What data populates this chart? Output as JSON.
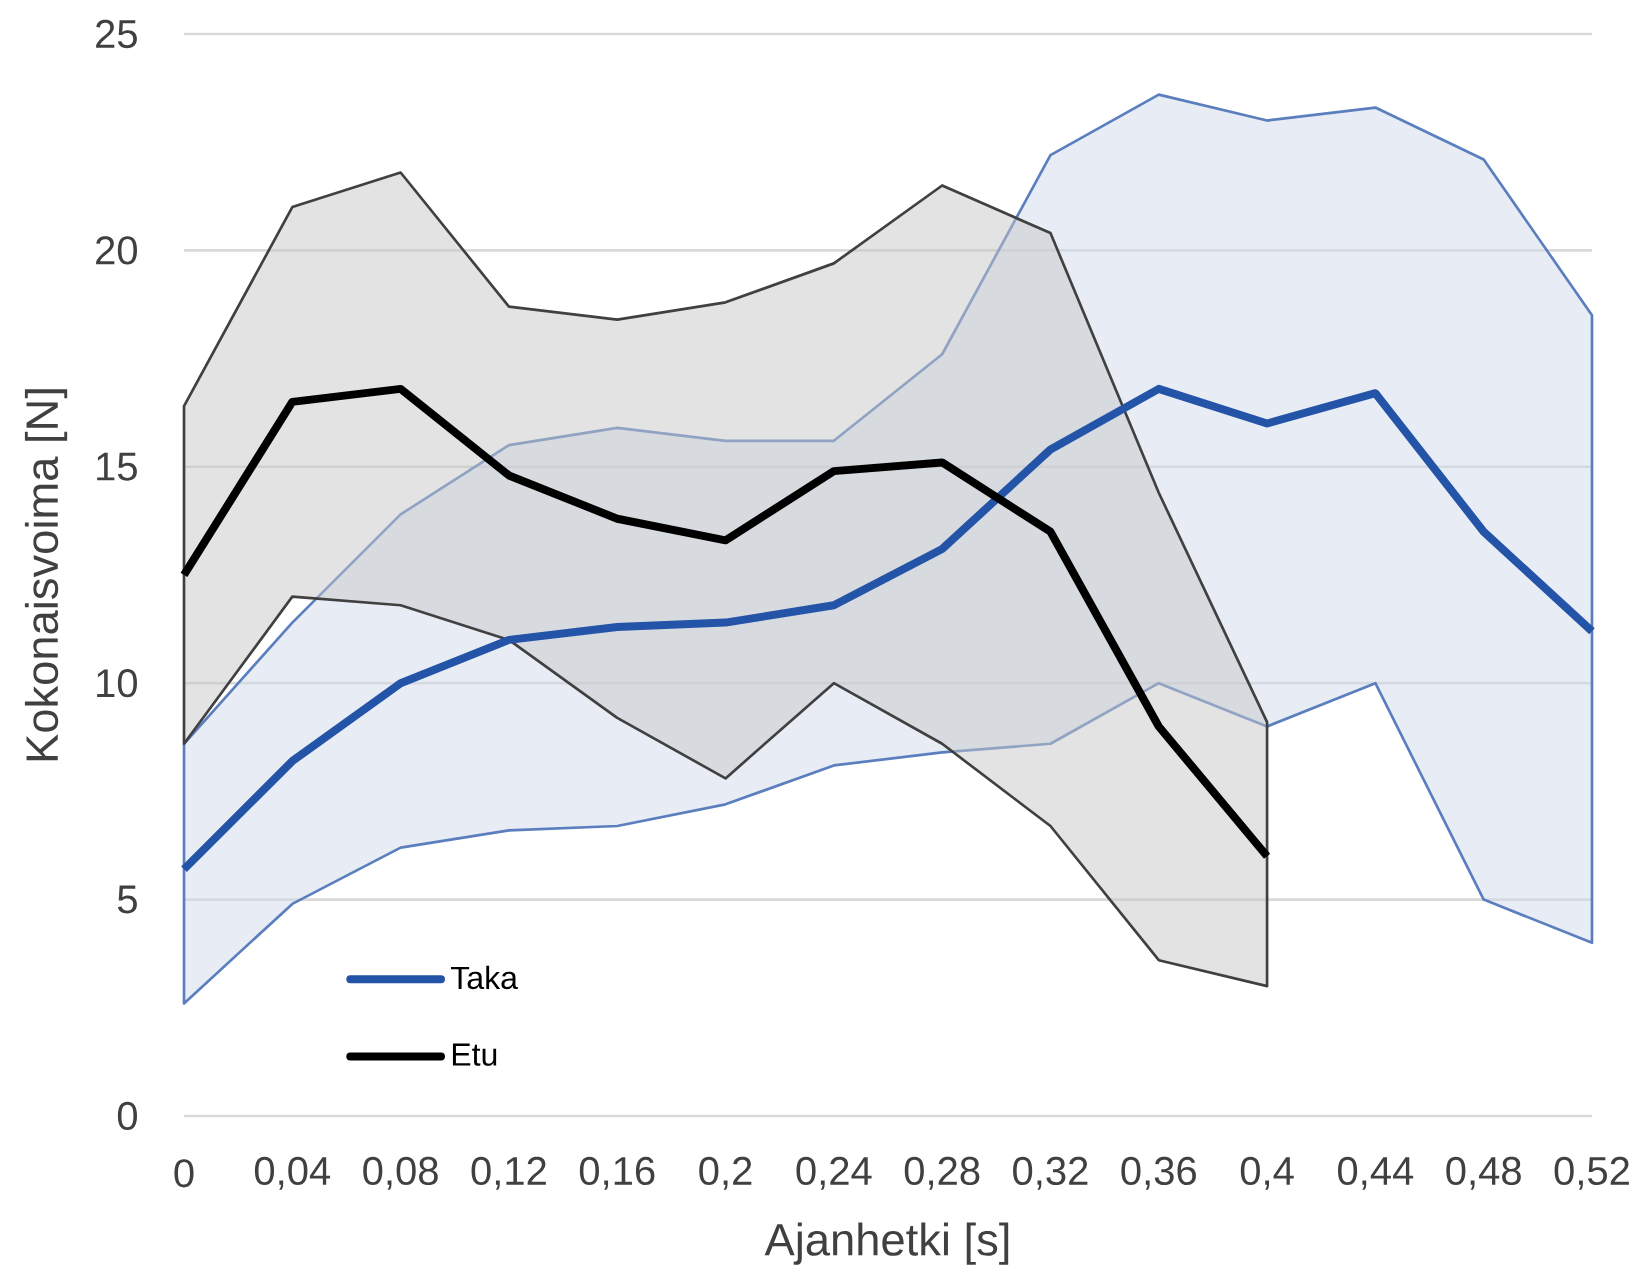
{
  "chart_data": {
    "type": "line",
    "xlabel": "Ajanhetki [s]",
    "ylabel": "Kokonaisvoima [N]",
    "categories": [
      "0",
      "0,04",
      "0,08",
      "0,12",
      "0,16",
      "0,2",
      "0,24",
      "0,28",
      "0,32",
      "0,36",
      "0,4",
      "0,44",
      "0,48",
      "0,52"
    ],
    "series": [
      {
        "name": "Taka",
        "color": "#2454a8",
        "values": [
          5.7,
          8.2,
          10.0,
          11.0,
          11.3,
          11.4,
          11.8,
          13.1,
          15.4,
          16.8,
          16.0,
          16.7,
          13.5,
          11.2
        ],
        "lower": [
          2.6,
          4.9,
          6.2,
          6.6,
          6.7,
          7.2,
          8.1,
          8.4,
          8.6,
          10.0,
          9.0,
          10.0,
          5.0,
          4.0
        ],
        "upper": [
          8.6,
          11.4,
          13.9,
          15.5,
          15.9,
          15.6,
          15.6,
          17.6,
          22.2,
          23.6,
          23.0,
          23.3,
          22.1,
          18.5
        ]
      },
      {
        "name": "Etu",
        "color": "#000000",
        "values": [
          12.5,
          16.5,
          16.8,
          14.8,
          13.8,
          13.3,
          14.9,
          15.1,
          13.5,
          9.0,
          6.0,
          null,
          null,
          null
        ],
        "lower": [
          8.6,
          12.0,
          11.8,
          11.0,
          9.2,
          7.8,
          10.0,
          8.6,
          6.7,
          3.6,
          3.0,
          null,
          null,
          null
        ],
        "upper": [
          16.4,
          21.0,
          21.8,
          18.7,
          18.4,
          18.8,
          19.7,
          21.5,
          20.4,
          14.4,
          9.1,
          null,
          null,
          null
        ]
      }
    ],
    "ylim": [
      0,
      25
    ],
    "yticks": [
      0,
      5,
      10,
      15,
      20,
      25
    ],
    "grid": "y",
    "legend": "bottom left"
  }
}
